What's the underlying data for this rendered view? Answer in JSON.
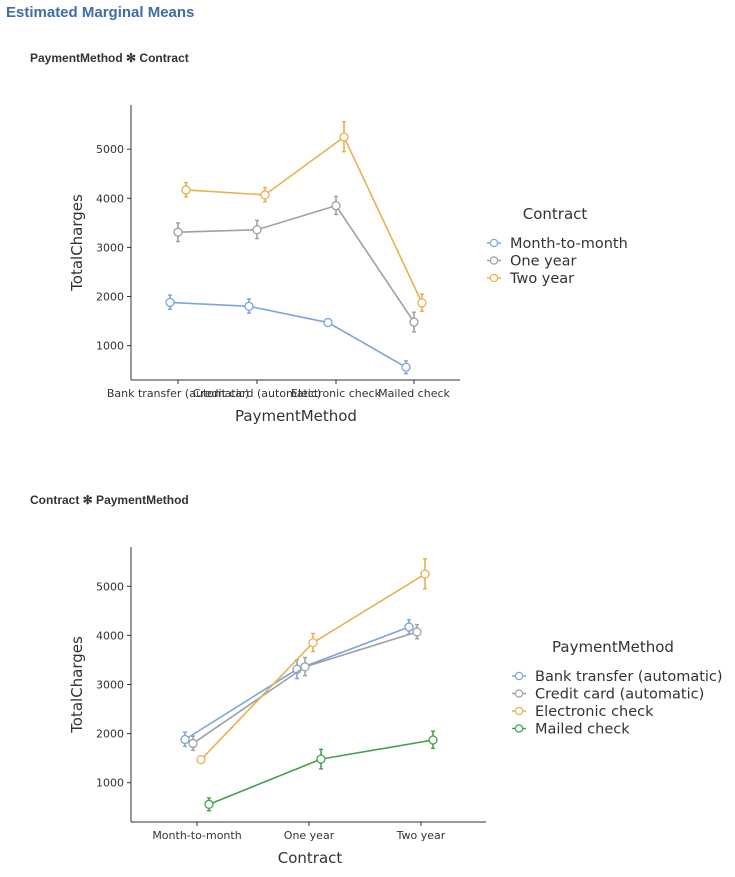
{
  "page": {
    "title": "Estimated Marginal Means"
  },
  "colors": {
    "blue": "#7aa6de",
    "gray": "#a0a0a0",
    "orange": "#e8b14f",
    "green": "#45a04a",
    "axis": "#333333"
  },
  "chart_data": [
    {
      "type": "line",
      "subtitle": "PaymentMethod ✻ Contract",
      "xlabel": "PaymentMethod",
      "ylabel": "TotalCharges",
      "categories": [
        "Bank transfer (automatic)",
        "Credit card (automatic)",
        "Electronic check",
        "Mailed check"
      ],
      "yticks": [
        1000,
        2000,
        3000,
        4000,
        5000
      ],
      "ylim": [
        300,
        5900
      ],
      "legend": {
        "title": "Contract",
        "position": "right"
      },
      "error_bars": true,
      "series": [
        {
          "name": "Month-to-month",
          "color": "#7aa6de",
          "values": [
            1880,
            1800,
            1470,
            560
          ],
          "ci_low": [
            1740,
            1660,
            1400,
            430
          ],
          "ci_high": [
            2030,
            1950,
            1540,
            690
          ]
        },
        {
          "name": "One year",
          "color": "#a0a0a0",
          "values": [
            3310,
            3360,
            3850,
            1480
          ],
          "ci_low": [
            3120,
            3180,
            3670,
            1280
          ],
          "ci_high": [
            3500,
            3550,
            4040,
            1680
          ]
        },
        {
          "name": "Two year",
          "color": "#e8b14f",
          "values": [
            4170,
            4070,
            5250,
            1870
          ],
          "ci_low": [
            4030,
            3930,
            4950,
            1700
          ],
          "ci_high": [
            4320,
            4220,
            5560,
            2050
          ]
        }
      ]
    },
    {
      "type": "line",
      "subtitle": "Contract ✻ PaymentMethod",
      "xlabel": "Contract",
      "ylabel": "TotalCharges",
      "categories": [
        "Month-to-month",
        "One year",
        "Two year"
      ],
      "yticks": [
        1000,
        2000,
        3000,
        4000,
        5000
      ],
      "ylim": [
        200,
        5800
      ],
      "legend": {
        "title": "PaymentMethod",
        "position": "right"
      },
      "error_bars": true,
      "series": [
        {
          "name": "Bank transfer (automatic)",
          "color": "#7aa6de",
          "values": [
            1880,
            3310,
            4170
          ],
          "ci_low": [
            1740,
            3120,
            4030
          ],
          "ci_high": [
            2030,
            3500,
            4320
          ]
        },
        {
          "name": "Credit card (automatic)",
          "color": "#a0a0a0",
          "values": [
            1800,
            3360,
            4070
          ],
          "ci_low": [
            1660,
            3180,
            3930
          ],
          "ci_high": [
            1950,
            3550,
            4220
          ]
        },
        {
          "name": "Electronic check",
          "color": "#e8b14f",
          "values": [
            1470,
            3850,
            5250
          ],
          "ci_low": [
            1400,
            3670,
            4950
          ],
          "ci_high": [
            1540,
            4040,
            5560
          ]
        },
        {
          "name": "Mailed check",
          "color": "#45a04a",
          "values": [
            560,
            1480,
            1870
          ],
          "ci_low": [
            430,
            1280,
            1700
          ],
          "ci_high": [
            690,
            1680,
            2050
          ]
        }
      ]
    }
  ]
}
